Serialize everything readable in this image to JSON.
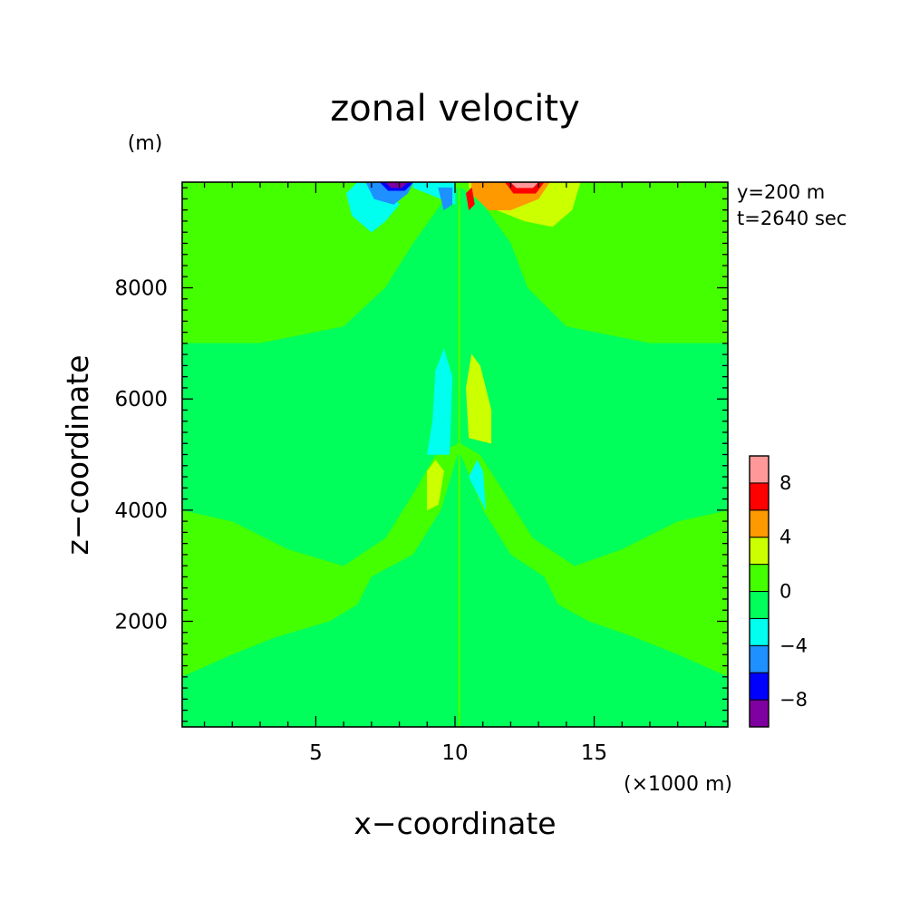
{
  "chart_data": {
    "type": "heatmap",
    "subtype": "filled-contour",
    "title": "zonal velocity",
    "xlabel": "x−coordinate",
    "ylabel": "z−coordinate",
    "x_unit_label": "(×1000 m)",
    "y_unit_label": "(m)",
    "annotations": [
      "y=200 m",
      "t=2640 sec"
    ],
    "xlim": [
      0.2,
      19.8
    ],
    "ylim": [
      100,
      9900
    ],
    "xticks": [
      5,
      10,
      15
    ],
    "yticks": [
      2000,
      4000,
      6000,
      8000
    ],
    "x_minor_step": 1,
    "y_minor_step": 200,
    "colorbar": {
      "levels": [
        -10,
        -8,
        -6,
        -4,
        -2,
        0,
        2,
        4,
        6,
        8,
        10
      ],
      "colors": [
        "#7f00a0",
        "#0000ff",
        "#1e90ff",
        "#00ffee",
        "#00ff5a",
        "#44ff00",
        "#ccff00",
        "#ff9900",
        "#ff0000",
        "#ff9999"
      ],
      "tick_labels": [
        "−8",
        "−4",
        "0",
        "4",
        "8"
      ],
      "tick_values": [
        -8,
        -4,
        0,
        4,
        8
      ]
    },
    "background_level": "0 to 2",
    "regions": [
      {
        "level": "-2 to 0",
        "desc": "left half background",
        "points": [
          [
            0.2,
            0.1
          ],
          [
            0.2,
            1.0
          ],
          [
            2,
            1.4
          ],
          [
            3.5,
            1.7
          ],
          [
            5.5,
            2.0
          ],
          [
            6.5,
            2.3
          ],
          [
            7,
            2.8
          ],
          [
            8.5,
            3.2
          ],
          [
            9.5,
            4.0
          ],
          [
            10.1,
            5.0
          ],
          [
            10.1,
            0.1
          ]
        ]
      },
      {
        "level": "-2 to 0",
        "desc": "right half background",
        "points": [
          [
            10.2,
            0.1
          ],
          [
            10.2,
            5.0
          ],
          [
            11,
            4.0
          ],
          [
            12,
            3.2
          ],
          [
            13.2,
            2.8
          ],
          [
            13.7,
            2.3
          ],
          [
            14.8,
            2.0
          ],
          [
            16.5,
            1.7
          ],
          [
            18,
            1.4
          ],
          [
            19.8,
            1.0
          ],
          [
            19.8,
            0.1
          ]
        ]
      },
      {
        "level": "-2 to 0",
        "desc": "upper left band",
        "points": [
          [
            0.2,
            4.0
          ],
          [
            0.2,
            7.0
          ],
          [
            3,
            7.0
          ],
          [
            6,
            7.3
          ],
          [
            7.5,
            8.0
          ],
          [
            8.5,
            8.8
          ],
          [
            9.5,
            9.5
          ],
          [
            10.1,
            9.8
          ],
          [
            10.1,
            5.2
          ],
          [
            9.3,
            5.0
          ],
          [
            8.5,
            4.3
          ],
          [
            7.5,
            3.5
          ],
          [
            6,
            3.0
          ],
          [
            4,
            3.3
          ],
          [
            2,
            3.8
          ]
        ]
      },
      {
        "level": "-2 to 0",
        "desc": "upper right band",
        "points": [
          [
            10.2,
            5.2
          ],
          [
            10.2,
            9.8
          ],
          [
            11,
            9.5
          ],
          [
            12,
            8.8
          ],
          [
            12.6,
            8.0
          ],
          [
            14,
            7.3
          ],
          [
            17,
            7.0
          ],
          [
            19.8,
            7.0
          ],
          [
            19.8,
            4.0
          ],
          [
            18,
            3.8
          ],
          [
            16,
            3.3
          ],
          [
            14.3,
            3.0
          ],
          [
            12.8,
            3.5
          ],
          [
            11.8,
            4.3
          ],
          [
            10.9,
            5.0
          ]
        ]
      },
      {
        "level": "-4 to -2",
        "desc": "left upper cyan",
        "points": [
          [
            6.1,
            9.7
          ],
          [
            6.3,
            9.3
          ],
          [
            7,
            9.0
          ],
          [
            7.5,
            9.2
          ],
          [
            8,
            9.5
          ],
          [
            7.5,
            9.8
          ],
          [
            6.5,
            9.9
          ]
        ]
      },
      {
        "level": "-4 to -2",
        "desc": "left upper cyan core",
        "points": [
          [
            8.5,
            9.8
          ],
          [
            9.5,
            9.6
          ],
          [
            10.0,
            9.5
          ],
          [
            10.0,
            9.9
          ],
          [
            8.5,
            9.9
          ]
        ]
      },
      {
        "level": "-6 to -4",
        "desc": "left blue patch",
        "points": [
          [
            6.8,
            9.9
          ],
          [
            7.1,
            9.6
          ],
          [
            7.8,
            9.5
          ],
          [
            8.3,
            9.7
          ],
          [
            8.5,
            9.9
          ]
        ]
      },
      {
        "level": "-6 to -4",
        "desc": "blue near center",
        "points": [
          [
            9.4,
            9.8
          ],
          [
            9.6,
            9.4
          ],
          [
            9.9,
            9.5
          ],
          [
            9.9,
            9.8
          ]
        ]
      },
      {
        "level": "-8 to -6",
        "desc": "left dark blue edge",
        "points": [
          [
            7.3,
            9.9
          ],
          [
            7.6,
            9.75
          ],
          [
            8.2,
            9.75
          ],
          [
            8.5,
            9.9
          ]
        ]
      },
      {
        "level": "-10 to -8",
        "desc": "left purple core",
        "points": [
          [
            7.5,
            9.9
          ],
          [
            7.7,
            9.8
          ],
          [
            8.1,
            9.8
          ],
          [
            8.3,
            9.9
          ]
        ]
      },
      {
        "level": "2 to 4",
        "desc": "right upper yellow",
        "points": [
          [
            10.5,
            9.8
          ],
          [
            11.5,
            9.4
          ],
          [
            12.5,
            9.2
          ],
          [
            13.5,
            9.1
          ],
          [
            14.2,
            9.4
          ],
          [
            14.5,
            9.9
          ],
          [
            10.5,
            9.9
          ]
        ]
      },
      {
        "level": "4 to 6",
        "desc": "right orange patch",
        "points": [
          [
            10.6,
            9.7
          ],
          [
            11.2,
            9.4
          ],
          [
            12,
            9.4
          ],
          [
            13,
            9.6
          ],
          [
            13.4,
            9.9
          ],
          [
            10.6,
            9.9
          ]
        ]
      },
      {
        "level": "6 to 8",
        "desc": "right red edge",
        "points": [
          [
            11.8,
            9.9
          ],
          [
            12.1,
            9.7
          ],
          [
            12.9,
            9.7
          ],
          [
            13.2,
            9.9
          ]
        ]
      },
      {
        "level": "6 to 8",
        "desc": "red near center",
        "points": [
          [
            10.4,
            9.7
          ],
          [
            10.5,
            9.4
          ],
          [
            10.7,
            9.5
          ],
          [
            10.6,
            9.8
          ]
        ]
      },
      {
        "level": "8 to 10",
        "desc": "right pink core",
        "points": [
          [
            12.0,
            9.9
          ],
          [
            12.2,
            9.8
          ],
          [
            12.8,
            9.8
          ],
          [
            13.0,
            9.9
          ]
        ]
      },
      {
        "level": "-4 to -2",
        "desc": "left mid cyan",
        "points": [
          [
            9.0,
            5.0
          ],
          [
            9.2,
            5.6
          ],
          [
            9.3,
            6.5
          ],
          [
            9.6,
            6.9
          ],
          [
            9.9,
            6.4
          ],
          [
            9.8,
            5.0
          ]
        ]
      },
      {
        "level": "2 to 4",
        "desc": "right mid yellow",
        "points": [
          [
            10.5,
            5.3
          ],
          [
            10.4,
            6.2
          ],
          [
            10.6,
            6.8
          ],
          [
            10.9,
            6.6
          ],
          [
            11.3,
            5.8
          ],
          [
            11.3,
            5.2
          ]
        ]
      },
      {
        "level": "2 to 4",
        "desc": "left lower yellow",
        "points": [
          [
            9.0,
            4.0
          ],
          [
            9.0,
            4.7
          ],
          [
            9.3,
            4.9
          ],
          [
            9.6,
            4.7
          ],
          [
            9.4,
            4.1
          ]
        ]
      },
      {
        "level": "-4 to -2",
        "desc": "right lower cyan",
        "points": [
          [
            10.5,
            4.6
          ],
          [
            10.8,
            4.9
          ],
          [
            11.0,
            4.7
          ],
          [
            11.1,
            4.0
          ],
          [
            10.8,
            4.3
          ]
        ]
      }
    ]
  }
}
